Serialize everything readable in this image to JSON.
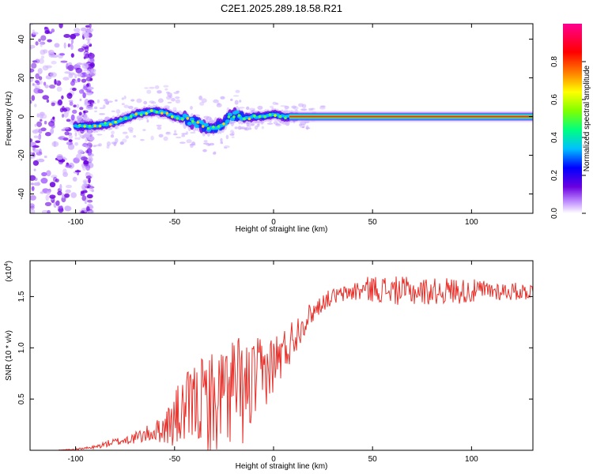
{
  "title": "C2E1.2025.289.18.58.R21",
  "chart_data": [
    {
      "type": "heatmap",
      "xlabel": "Height of straight line (km)",
      "ylabel": "Frequency (Hz)",
      "xlim": [
        -123,
        131
      ],
      "ylim": [
        -50,
        48
      ],
      "x_ticks": [
        -100,
        -50,
        0,
        50,
        100
      ],
      "x_tick_labels": [
        "-100",
        "-50",
        "0",
        "50",
        "100"
      ],
      "y_ticks": [
        -40,
        -20,
        0,
        20,
        40
      ],
      "y_tick_labels": [
        "-40",
        "-20",
        "0",
        "20",
        "40"
      ],
      "colorbar": {
        "label": "Normalized spectral amplitude",
        "range": [
          0,
          1
        ],
        "ticks": [
          0.0,
          0.2,
          0.4,
          0.6,
          0.8
        ],
        "tick_labels": [
          "0.0",
          "0.2",
          "0.4",
          "0.6",
          "0.8"
        ],
        "colors": [
          "#ffffff",
          "#c090ff",
          "#6a00e0",
          "#0000ff",
          "#00c0ff",
          "#00ff80",
          "#80ff00",
          "#ffff00",
          "#ff8000",
          "#ff0000",
          "#ff0090"
        ]
      },
      "ridge_center": {
        "x": [
          -100,
          -92,
          -85,
          -80,
          -75,
          -70,
          -65,
          -60,
          -55,
          -50,
          -45,
          -40,
          -35,
          -30,
          -25,
          -22,
          -18,
          -15,
          -10,
          -5,
          0,
          5,
          10,
          130
        ],
        "y": [
          -5,
          -5,
          -4,
          -3,
          -1,
          1,
          2,
          3,
          2,
          0,
          -1,
          -3,
          -5,
          -6,
          -3,
          0,
          1,
          -1,
          0,
          0,
          1,
          0,
          0,
          0
        ]
      }
    },
    {
      "type": "line",
      "xlabel": "Height of straight line (km)",
      "ylabel": "SNR (10 * v/v)",
      "y_multiplier": "(x10^4)",
      "y_multiplier_base": "(x10",
      "y_multiplier_exp": "4",
      "xlim": [
        -123,
        131
      ],
      "ylim": [
        0,
        1.85
      ],
      "x_ticks": [
        -100,
        -50,
        0,
        50,
        100
      ],
      "x_tick_labels": [
        "-100",
        "-50",
        "0",
        "50",
        "100"
      ],
      "y_ticks": [
        0.5,
        1.0,
        1.5
      ],
      "y_tick_labels": [
        "0.5",
        "1.0",
        "1.5"
      ],
      "color": "#e8302a",
      "series": [
        {
          "name": "SNR",
          "x": [
            -123,
            -110,
            -100,
            -95,
            -90,
            -85,
            -80,
            -75,
            -70,
            -65,
            -60,
            -55,
            -50,
            -45,
            -40,
            -35,
            -30,
            -25,
            -20,
            -15,
            -10,
            -5,
            0,
            5,
            10,
            15,
            20,
            25,
            30,
            35,
            40,
            50,
            60,
            70,
            80,
            90,
            100,
            110,
            120,
            131
          ],
          "y": [
            0.0,
            0.0,
            0.01,
            0.02,
            0.03,
            0.06,
            0.08,
            0.1,
            0.12,
            0.15,
            0.18,
            0.22,
            0.3,
            0.38,
            0.45,
            0.5,
            0.45,
            0.55,
            0.6,
            0.55,
            0.65,
            0.75,
            0.85,
            0.95,
            1.1,
            1.25,
            1.35,
            1.45,
            1.5,
            1.52,
            1.55,
            1.58,
            1.56,
            1.55,
            1.55,
            1.56,
            1.55,
            1.56,
            1.55,
            1.55
          ],
          "noise_amp": [
            0,
            0,
            0.01,
            0.01,
            0.02,
            0.03,
            0.04,
            0.05,
            0.06,
            0.08,
            0.1,
            0.15,
            0.3,
            0.35,
            0.4,
            0.45,
            0.55,
            0.5,
            0.6,
            0.5,
            0.45,
            0.35,
            0.3,
            0.25,
            0.2,
            0.15,
            0.1,
            0.09,
            0.08,
            0.08,
            0.1,
            0.13,
            0.14,
            0.14,
            0.13,
            0.13,
            0.12,
            0.1,
            0.09,
            0.08
          ]
        }
      ]
    }
  ]
}
